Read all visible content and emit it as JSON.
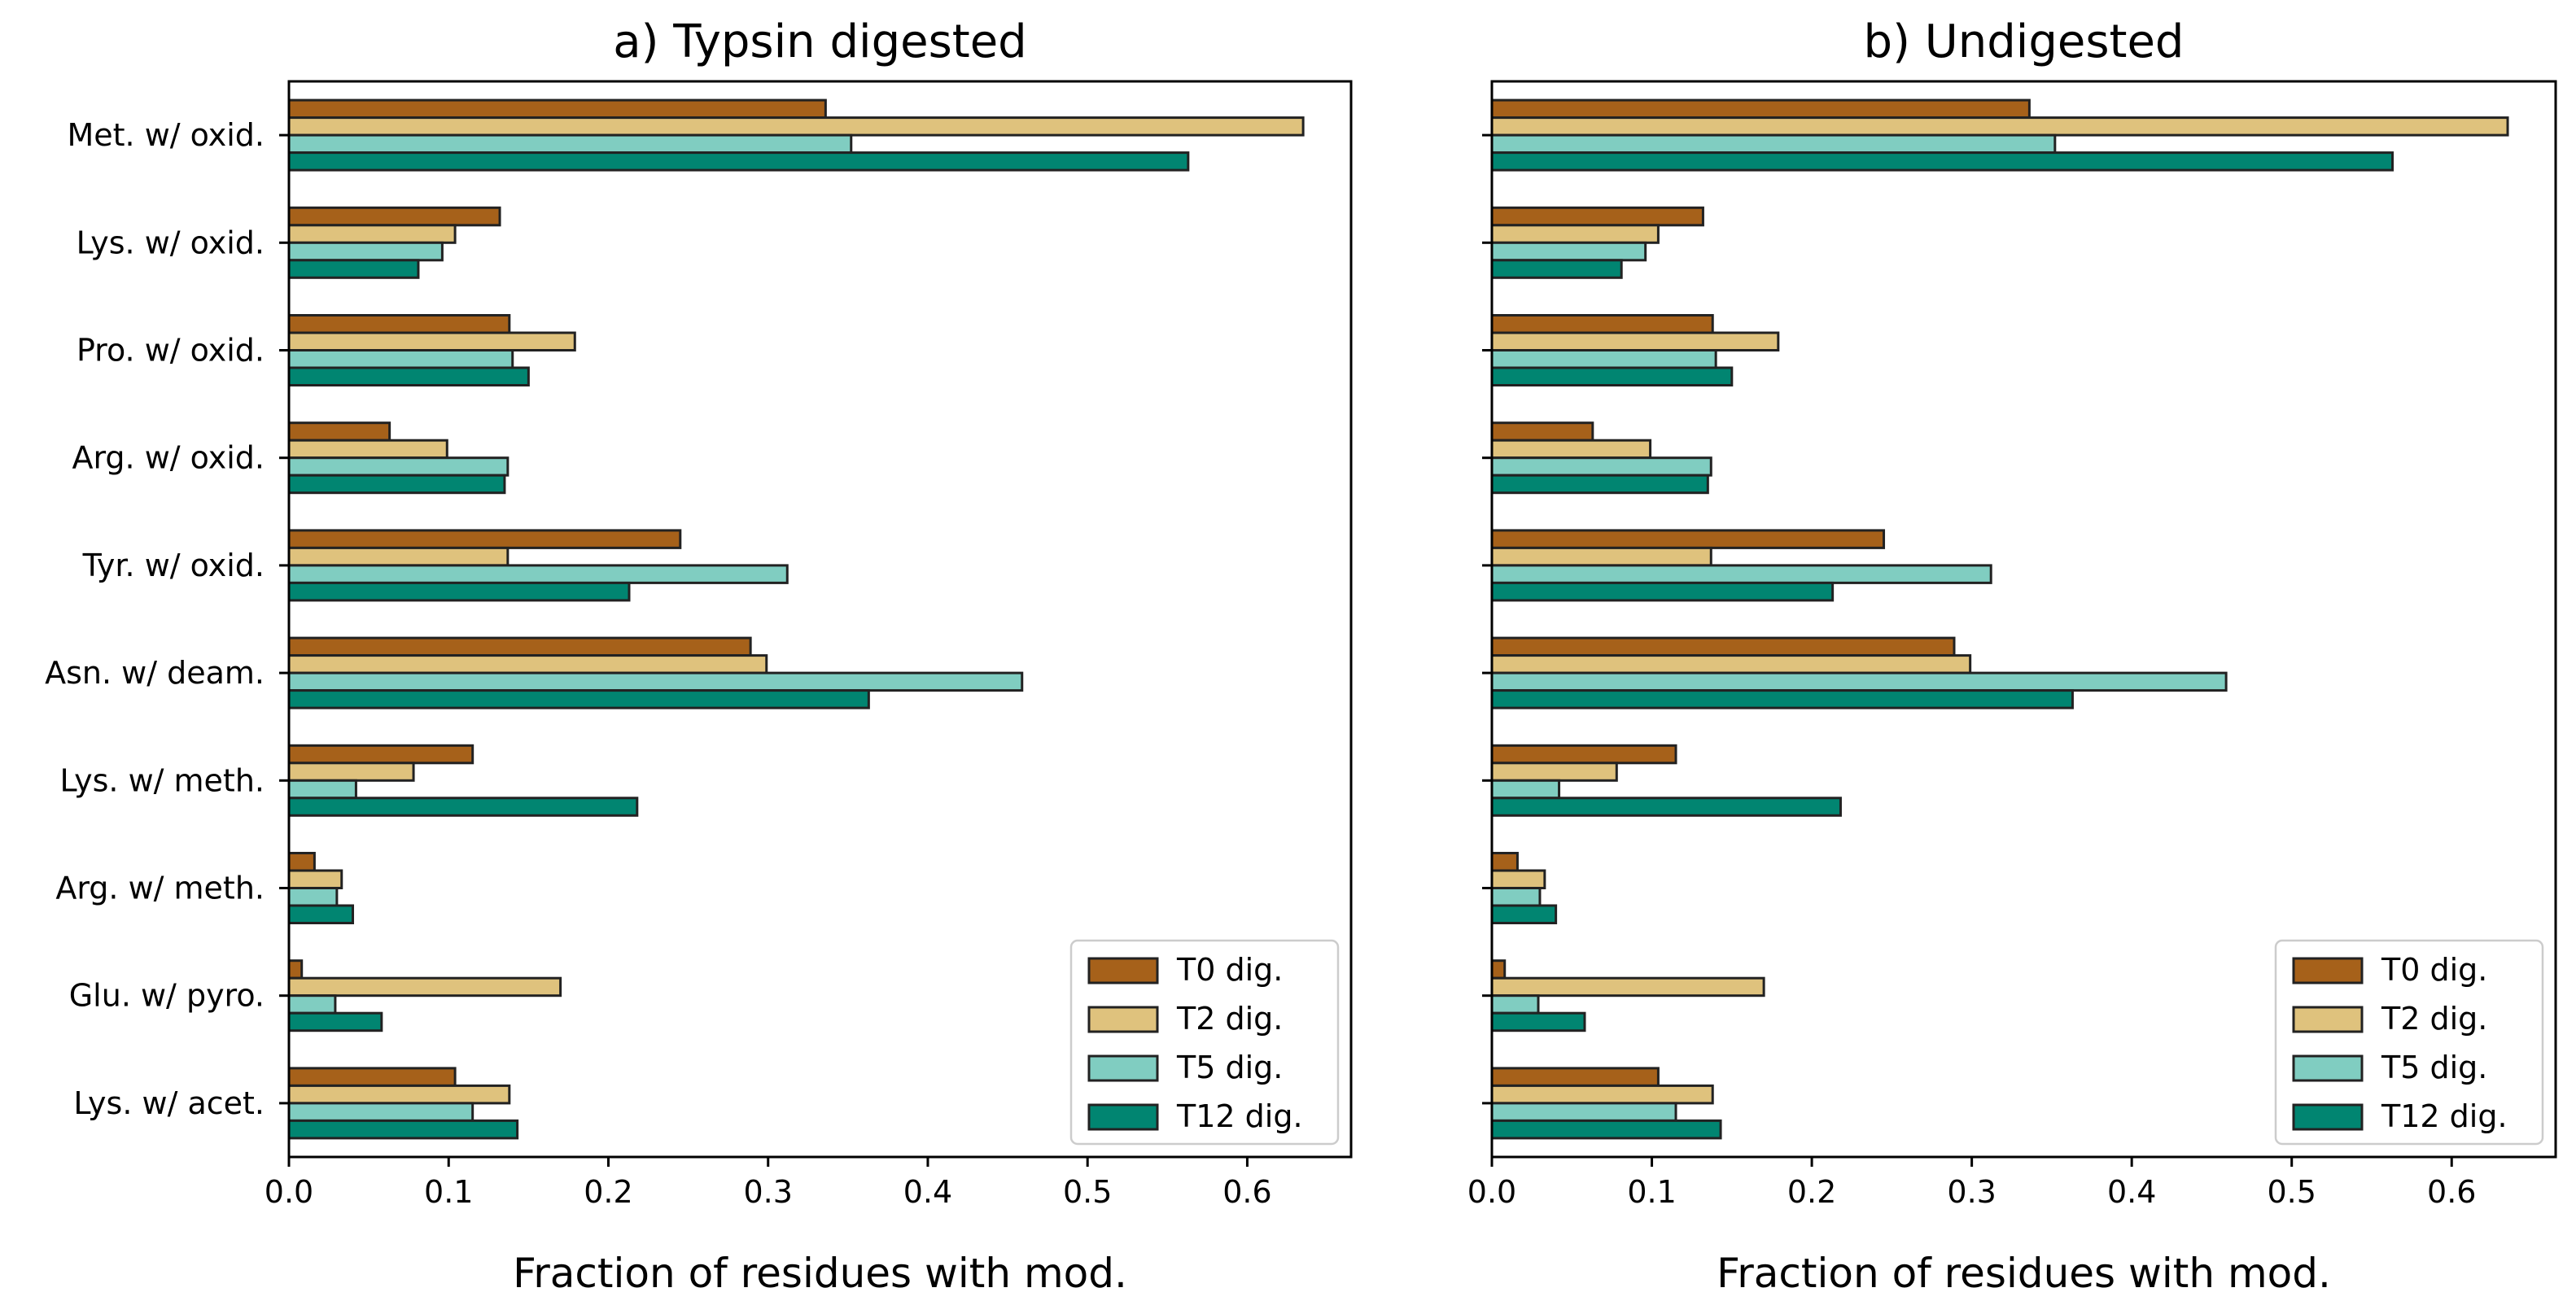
{
  "chart_data": [
    {
      "type": "bar",
      "orientation": "horizontal",
      "title": "a) Typsin digested",
      "xlabel": "Fraction of residues with mod.",
      "ylabel": "",
      "xlim": [
        0,
        0.665
      ],
      "x_ticks": [
        "0.0",
        "0.1",
        "0.2",
        "0.3",
        "0.4",
        "0.5",
        "0.6"
      ],
      "grid": false,
      "legend_position": "lower-right",
      "categories": [
        "Met. w/ oxid.",
        "Lys. w/ oxid.",
        "Pro. w/ oxid.",
        "Arg. w/ oxid.",
        "Tyr. w/ oxid.",
        "Asn. w/ deam.",
        "Lys. w/ meth.",
        "Arg. w/ meth.",
        "Glu. w/ pyro.",
        "Lys. w/ acet."
      ],
      "series": [
        {
          "name": "T0 dig.",
          "color": "#a6611a",
          "values": [
            0.336,
            0.132,
            0.138,
            0.063,
            0.245,
            0.289,
            0.115,
            0.016,
            0.008,
            0.104
          ]
        },
        {
          "name": "T2 dig.",
          "color": "#dfc27d",
          "values": [
            0.635,
            0.104,
            0.179,
            0.099,
            0.137,
            0.299,
            0.078,
            0.033,
            0.17,
            0.138
          ]
        },
        {
          "name": "T5 dig.",
          "color": "#80cdc1",
          "values": [
            0.352,
            0.096,
            0.14,
            0.137,
            0.312,
            0.459,
            0.042,
            0.03,
            0.029,
            0.115
          ]
        },
        {
          "name": "T12 dig.",
          "color": "#018571",
          "values": [
            0.563,
            0.081,
            0.15,
            0.135,
            0.213,
            0.363,
            0.218,
            0.04,
            0.058,
            0.143
          ]
        }
      ]
    },
    {
      "type": "bar",
      "orientation": "horizontal",
      "title": "b) Undigested",
      "xlabel": "Fraction of residues with mod.",
      "ylabel": "",
      "xlim": [
        0,
        0.665
      ],
      "x_ticks": [
        "0.0",
        "0.1",
        "0.2",
        "0.3",
        "0.4",
        "0.5",
        "0.6"
      ],
      "grid": false,
      "legend_position": "lower-right",
      "categories": [
        "Met. w/ oxid.",
        "Lys. w/ oxid.",
        "Pro. w/ oxid.",
        "Arg. w/ oxid.",
        "Tyr. w/ oxid.",
        "Asn. w/ deam.",
        "Lys. w/ meth.",
        "Arg. w/ meth.",
        "Glu. w/ pyro.",
        "Lys. w/ acet."
      ],
      "series": [
        {
          "name": "T0 dig.",
          "color": "#a6611a",
          "values": [
            0.336,
            0.132,
            0.138,
            0.063,
            0.245,
            0.289,
            0.115,
            0.016,
            0.008,
            0.104
          ]
        },
        {
          "name": "T2 dig.",
          "color": "#dfc27d",
          "values": [
            0.635,
            0.104,
            0.179,
            0.099,
            0.137,
            0.299,
            0.078,
            0.033,
            0.17,
            0.138
          ]
        },
        {
          "name": "T5 dig.",
          "color": "#80cdc1",
          "values": [
            0.352,
            0.096,
            0.14,
            0.137,
            0.312,
            0.459,
            0.042,
            0.03,
            0.029,
            0.115
          ]
        },
        {
          "name": "T12 dig.",
          "color": "#018571",
          "values": [
            0.563,
            0.081,
            0.15,
            0.135,
            0.213,
            0.363,
            0.218,
            0.04,
            0.058,
            0.143
          ]
        }
      ]
    }
  ]
}
